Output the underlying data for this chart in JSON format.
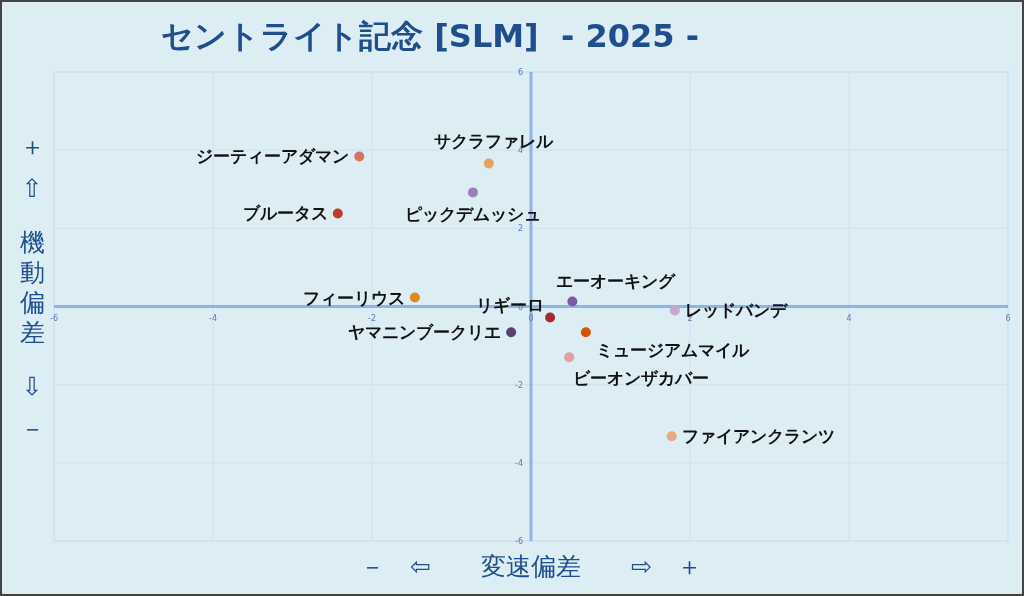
{
  "chart_data": {
    "type": "scatter",
    "title": "セントライト記念 [SLM]  - 2025 -",
    "xlabel": "－　⇦　　変速偏差　　⇨　＋",
    "ylabel": "＋　⇧　　機動偏差　　⇩　－",
    "xlim": [
      -6,
      6
    ],
    "ylim": [
      -6,
      6
    ],
    "xticks": [
      -6,
      -4,
      -2,
      0,
      2,
      4,
      6
    ],
    "yticks": [
      -6,
      -4,
      -2,
      0,
      2,
      4,
      6
    ],
    "grid": true,
    "marker": "circle",
    "series": [
      {
        "name": "ジーティーアダマン",
        "color": "#d9735f",
        "x": [
          -2.16
        ],
        "values": [
          3.84
        ]
      },
      {
        "name": "サクラファレル",
        "color": "#e8a060",
        "x": [
          -0.53
        ],
        "values": [
          3.66
        ]
      },
      {
        "name": "ピックデムッシュ",
        "color": "#9b7fb8",
        "x": [
          -0.73
        ],
        "values": [
          2.92
        ]
      },
      {
        "name": "ブルータス",
        "color": "#c0392b",
        "x": [
          -2.43
        ],
        "values": [
          2.38
        ]
      },
      {
        "name": "フィーリウス",
        "color": "#e08a1e",
        "x": [
          -1.46
        ],
        "values": [
          0.23
        ]
      },
      {
        "name": "エーオーキング",
        "color": "#7b5aa0",
        "x": [
          0.52
        ],
        "values": [
          0.13
        ]
      },
      {
        "name": "レッドバンデ",
        "color": "#c8a8d0",
        "x": [
          1.81
        ],
        "values": [
          -0.1
        ]
      },
      {
        "name": "リギーロ",
        "color": "#a52a2a",
        "x": [
          0.24
        ],
        "values": [
          -0.28
        ]
      },
      {
        "name": "ヤマニンブークリエ",
        "color": "#5b3f6e",
        "x": [
          -0.25
        ],
        "values": [
          -0.66
        ]
      },
      {
        "name": "ミュージアムマイル",
        "color": "#d35400",
        "x": [
          0.69
        ],
        "values": [
          -0.66
        ]
      },
      {
        "name": "ビーオンザカバー",
        "color": "#e0a0a0",
        "x": [
          0.48
        ],
        "values": [
          -1.3
        ]
      },
      {
        "name": "ファイアンクランツ",
        "color": "#e8a888",
        "x": [
          1.77
        ],
        "values": [
          -3.32
        ]
      }
    ]
  }
}
